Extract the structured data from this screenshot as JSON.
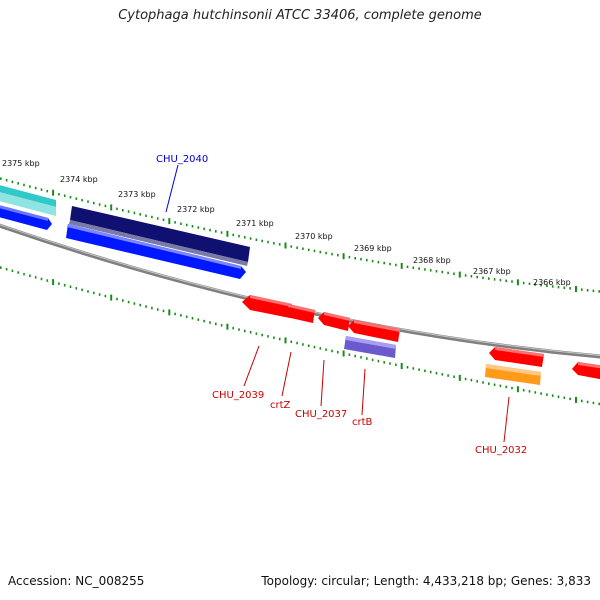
{
  "title": "Cytophaga hutchinsonii ATCC 33406, complete genome",
  "footer": {
    "accession": "Accession: NC_008255",
    "topology": "Topology: circular; Length: 4,433,218 bp; Genes: 3,833"
  },
  "colors": {
    "backbone": "#888888",
    "tick": "#1a8a1a",
    "label_forward": "#0000cc",
    "label_reverse": "#cc0000",
    "gene_red": "#ff0000",
    "gene_navy": "#101070",
    "gene_blue": "#0018ff",
    "gene_cyan": "#30c8c8",
    "gene_purple": "#6a5acd",
    "gene_orange": "#ff9a1a"
  },
  "scale_labels": [
    "2375 kbp",
    "2374 kbp",
    "2373 kbp",
    "2372 kbp",
    "2371 kbp",
    "2370 kbp",
    "2369 kbp",
    "2368 kbp",
    "2367 kbp",
    "2366 kbp"
  ],
  "gene_labels": [
    {
      "id": "CHU_2040",
      "strand": "forward"
    },
    {
      "id": "CHU_2039",
      "strand": "reverse"
    },
    {
      "id": "crtZ",
      "strand": "reverse"
    },
    {
      "id": "CHU_2037",
      "strand": "reverse"
    },
    {
      "id": "crtB",
      "strand": "reverse"
    },
    {
      "id": "CHU_2032",
      "strand": "reverse"
    }
  ]
}
